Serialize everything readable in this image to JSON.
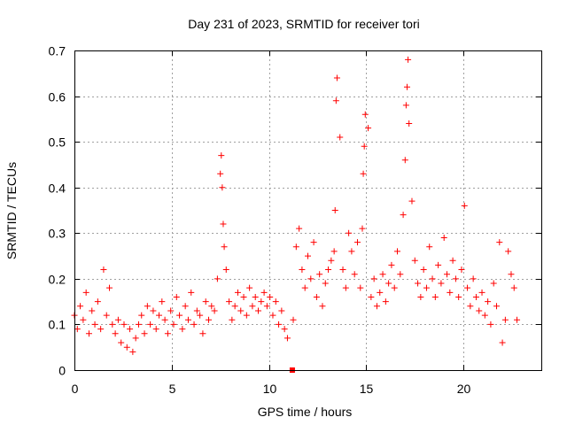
{
  "chart_data": {
    "type": "scatter",
    "title": "Day 231 of 2023, SRMTID for receiver tori",
    "xlabel": "GPS time / hours",
    "ylabel": "SRMTID / TECUs",
    "xlim": [
      0,
      24
    ],
    "ylim": [
      0,
      0.7
    ],
    "xticks": [
      0,
      5,
      10,
      15,
      20
    ],
    "yticks": [
      0,
      0.1,
      0.2,
      0.3,
      0.4,
      0.5,
      0.6,
      0.7
    ],
    "xtick_labels": [
      "0",
      "5",
      "10",
      "15",
      "20"
    ],
    "ytick_labels": [
      "0",
      "0.1",
      "0.2",
      "0.3",
      "0.4",
      "0.5",
      "0.6",
      "0.7"
    ],
    "grid": true,
    "marker": "plus",
    "color": "#ff0000",
    "series": [
      {
        "name": "SRMTID",
        "x": [
          0.0,
          0.15,
          0.3,
          0.45,
          0.6,
          0.75,
          0.9,
          1.05,
          1.2,
          1.35,
          1.5,
          1.65,
          1.8,
          1.95,
          2.1,
          2.25,
          2.4,
          2.55,
          2.7,
          2.85,
          3.0,
          3.15,
          3.3,
          3.45,
          3.6,
          3.75,
          3.9,
          4.05,
          4.2,
          4.35,
          4.5,
          4.65,
          4.8,
          4.95,
          5.1,
          5.25,
          5.4,
          5.55,
          5.7,
          5.85,
          6.0,
          6.15,
          6.3,
          6.45,
          6.6,
          6.75,
          6.9,
          7.05,
          7.2,
          7.35,
          7.5,
          7.55,
          7.6,
          7.65,
          7.7,
          7.8,
          7.95,
          8.1,
          8.25,
          8.4,
          8.55,
          8.7,
          8.85,
          9.0,
          9.15,
          9.3,
          9.45,
          9.6,
          9.75,
          9.9,
          10.05,
          10.2,
          10.35,
          10.5,
          10.65,
          10.8,
          10.95,
          11.25,
          11.4,
          11.55,
          11.7,
          11.85,
          12.0,
          12.15,
          12.3,
          12.45,
          12.6,
          12.75,
          12.9,
          13.05,
          13.2,
          13.35,
          13.4,
          13.45,
          13.5,
          13.65,
          13.8,
          13.95,
          14.1,
          14.25,
          14.4,
          14.55,
          14.7,
          14.8,
          14.85,
          14.9,
          14.95,
          15.1,
          15.25,
          15.4,
          15.55,
          15.7,
          15.85,
          16.0,
          16.15,
          16.3,
          16.45,
          16.6,
          16.75,
          16.9,
          17.0,
          17.05,
          17.1,
          17.15,
          17.2,
          17.35,
          17.5,
          17.65,
          17.8,
          17.95,
          18.1,
          18.25,
          18.4,
          18.55,
          18.7,
          18.85,
          19.0,
          19.15,
          19.3,
          19.45,
          19.6,
          19.75,
          19.9,
          20.05,
          20.2,
          20.35,
          20.5,
          20.65,
          20.8,
          20.95,
          21.1,
          21.25,
          21.4,
          21.55,
          21.7,
          21.85,
          22.0,
          22.15,
          22.3,
          22.45,
          22.6,
          22.75
        ],
        "y": [
          0.12,
          0.09,
          0.14,
          0.11,
          0.17,
          0.08,
          0.13,
          0.1,
          0.15,
          0.09,
          0.22,
          0.12,
          0.18,
          0.1,
          0.08,
          0.11,
          0.06,
          0.1,
          0.05,
          0.09,
          0.04,
          0.07,
          0.1,
          0.12,
          0.08,
          0.14,
          0.1,
          0.13,
          0.09,
          0.12,
          0.15,
          0.11,
          0.08,
          0.13,
          0.1,
          0.16,
          0.12,
          0.09,
          0.14,
          0.11,
          0.17,
          0.1,
          0.13,
          0.12,
          0.08,
          0.15,
          0.11,
          0.14,
          0.13,
          0.2,
          0.43,
          0.47,
          0.4,
          0.32,
          0.27,
          0.22,
          0.15,
          0.11,
          0.14,
          0.17,
          0.13,
          0.16,
          0.12,
          0.18,
          0.14,
          0.16,
          0.13,
          0.15,
          0.17,
          0.14,
          0.16,
          0.12,
          0.15,
          0.1,
          0.13,
          0.09,
          0.07,
          0.11,
          0.27,
          0.31,
          0.22,
          0.18,
          0.25,
          0.2,
          0.28,
          0.16,
          0.21,
          0.14,
          0.19,
          0.22,
          0.24,
          0.26,
          0.35,
          0.59,
          0.64,
          0.51,
          0.22,
          0.18,
          0.3,
          0.26,
          0.21,
          0.28,
          0.18,
          0.31,
          0.43,
          0.49,
          0.56,
          0.53,
          0.16,
          0.2,
          0.14,
          0.17,
          0.21,
          0.15,
          0.19,
          0.23,
          0.18,
          0.26,
          0.21,
          0.34,
          0.46,
          0.58,
          0.62,
          0.68,
          0.54,
          0.37,
          0.24,
          0.19,
          0.16,
          0.22,
          0.18,
          0.27,
          0.2,
          0.16,
          0.23,
          0.19,
          0.29,
          0.21,
          0.17,
          0.24,
          0.2,
          0.16,
          0.22,
          0.36,
          0.18,
          0.14,
          0.2,
          0.16,
          0.13,
          0.17,
          0.12,
          0.15,
          0.1,
          0.19,
          0.14,
          0.28,
          0.06,
          0.11,
          0.26,
          0.21,
          0.18,
          0.11
        ]
      }
    ],
    "annotations": [
      {
        "type": "square-marker",
        "x": 11.2,
        "y": 0.0
      }
    ]
  }
}
